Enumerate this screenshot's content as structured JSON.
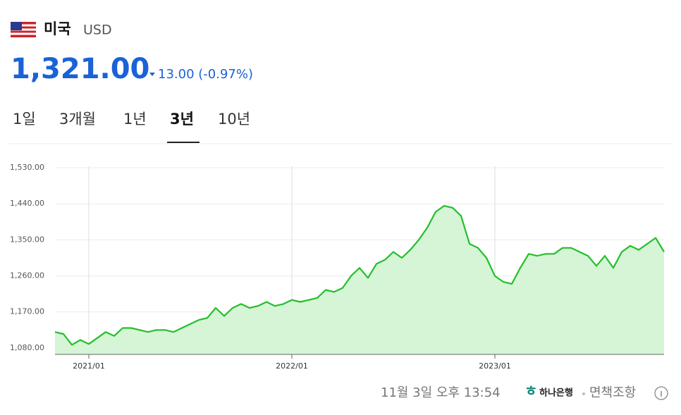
{
  "header": {
    "country": "미국",
    "currency": "USD",
    "price": "1,321.00",
    "change": "13.00 (-0.97%)"
  },
  "tabs": [
    "1일",
    "3개월",
    "1년",
    "3년",
    "10년"
  ],
  "active_tab": 3,
  "chart_data": {
    "type": "line",
    "categories": [
      null,
      null,
      null,
      null,
      "2021/01",
      null,
      null,
      null,
      null,
      null,
      null,
      null,
      null,
      null,
      null,
      null,
      null,
      null,
      null,
      null,
      null,
      null,
      null,
      null,
      null,
      null,
      null,
      null,
      "2022/01",
      null,
      null,
      null,
      null,
      null,
      null,
      null,
      null,
      null,
      null,
      null,
      null,
      null,
      null,
      null,
      null,
      null,
      null,
      null,
      null,
      null,
      null,
      null,
      "2023/01",
      null,
      null,
      null,
      null,
      null,
      null,
      null,
      null,
      null,
      null,
      null,
      null,
      null,
      null,
      null,
      null,
      null,
      null,
      null,
      null
    ],
    "series": [
      {
        "color": "#22c02a",
        "values": [
          1120,
          1115,
          1088,
          1100,
          1090,
          1105,
          1120,
          1110,
          1130,
          1130,
          1125,
          1120,
          1125,
          1125,
          1120,
          1130,
          1140,
          1150,
          1155,
          1180,
          1160,
          1180,
          1190,
          1180,
          1185,
          1195,
          1185,
          1190,
          1200,
          1195,
          1200,
          1205,
          1225,
          1220,
          1230,
          1260,
          1280,
          1255,
          1290,
          1300,
          1320,
          1305,
          1325,
          1350,
          1380,
          1420,
          1435,
          1430,
          1410,
          1340,
          1330,
          1305,
          1260,
          1245,
          1240,
          1280,
          1315,
          1310,
          1315,
          1315,
          1330,
          1330,
          1320,
          1310,
          1285,
          1310,
          1280,
          1320,
          1335,
          1325,
          1340,
          1355,
          1320
        ]
      }
    ],
    "ylim": [
      1064,
      1560
    ],
    "yticks": [
      {
        "value": 1080,
        "label": "1,080.00"
      },
      {
        "value": 1170,
        "label": "1,170.00"
      },
      {
        "value": 1260,
        "label": "1,260.00"
      },
      {
        "value": 1350,
        "label": "1,350.00"
      },
      {
        "value": 1440,
        "label": "1,440.00"
      },
      {
        "value": 1530,
        "label": "1,530.00"
      }
    ],
    "grid": true,
    "fill": "#d6f4d6"
  },
  "footer": {
    "time": "11월 3일 오후 13:54",
    "bank": "하나은행",
    "disclaimer": "면책조항"
  }
}
